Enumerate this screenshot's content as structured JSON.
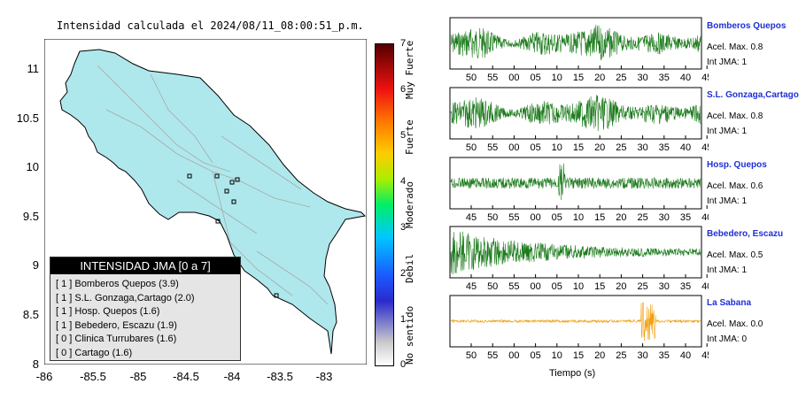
{
  "map": {
    "title": "Intensidad calculada el 2024/08/11_08:00:51_p.m.",
    "y_ticks": [
      "11",
      "10.5",
      "10",
      "9.5",
      "9",
      "8.5",
      "8"
    ],
    "x_ticks": [
      "-86",
      "-85.5",
      "-85",
      "-84.5",
      "-84",
      "-83.5",
      "-83"
    ]
  },
  "colorbar": {
    "numbers": [
      "7",
      "6",
      "5",
      "4",
      "3",
      "2",
      "1",
      "0"
    ],
    "words": [
      "Muy Fuerte",
      "Fuerte",
      "Moderado",
      "Debil",
      "No sentido"
    ]
  },
  "legend": {
    "title": "INTENSIDAD JMA [0 a 7]",
    "rows": [
      "[ 1 ]  Bomberos Quepos (3.9)",
      "[ 1 ]  S.L. Gonzaga,Cartago (2.0)",
      "[ 1 ]  Hosp. Quepos (1.6)",
      "[ 1 ]  Bebedero, Escazu (1.9)",
      "[ 0 ]  Clinica Turrubares (1.6)",
      "[ 0 ]  Cartago (1.6)"
    ]
  },
  "stations": [
    {
      "name": "Bomberos Quepos",
      "acel": "Acel. Max. 0.8",
      "int": "Int JMA: 1",
      "color": "#1a7a1a",
      "amp": 0.8,
      "ticks": [
        "50",
        "55",
        "00",
        "05",
        "10",
        "15",
        "20",
        "25",
        "30",
        "35",
        "40",
        "45"
      ]
    },
    {
      "name": "S.L. Gonzaga,Cartago",
      "acel": "Acel. Max. 0.8",
      "int": "Int JMA: 1",
      "color": "#1a7a1a",
      "amp": 0.8,
      "ticks": [
        "50",
        "55",
        "00",
        "05",
        "10",
        "15",
        "20",
        "25",
        "30",
        "35",
        "40",
        "45"
      ]
    },
    {
      "name": "Hosp. Quepos",
      "acel": "Acel. Max. 0.6",
      "int": "Int JMA: 1",
      "color": "#1a7a1a",
      "amp": 0.6,
      "ticks": [
        "45",
        "50",
        "55",
        "00",
        "05",
        "10",
        "15",
        "20",
        "25",
        "30",
        "35",
        "40"
      ]
    },
    {
      "name": "Bebedero, Escazu",
      "acel": "Acel. Max. 0.5",
      "int": "Int JMA: 1",
      "color": "#1a7a1a",
      "amp": 0.5,
      "ticks": [
        "45",
        "50",
        "55",
        "00",
        "05",
        "10",
        "15",
        "20",
        "25",
        "30",
        "35",
        "40"
      ]
    },
    {
      "name": "La Sabana",
      "acel": "Acel. Max. 0.0",
      "int": "Int JMA: 0",
      "color": "#f0a010",
      "amp": 0.0,
      "ticks": [
        "50",
        "55",
        "00",
        "05",
        "10",
        "15",
        "20",
        "25",
        "30",
        "35",
        "40",
        "45"
      ]
    }
  ],
  "x_axis_label": "Tiempo (s)",
  "chart_data": [
    {
      "type": "heatmap",
      "title": "Intensidad calculada el 2024/08/11_08:00:51_p.m.",
      "xlim": [
        -86,
        -82.7
      ],
      "ylim": [
        8,
        11.3
      ],
      "colorbar": {
        "range": [
          0,
          7
        ],
        "labels": [
          "No sentido",
          "Debil",
          "Moderado",
          "Fuerte",
          "Muy Fuerte"
        ]
      },
      "legend": {
        "title": "INTENSIDAD JMA [0 a 7]",
        "placement": "bottom-left"
      }
    },
    {
      "type": "line",
      "xlabel": "Tiempo (s)",
      "series": [
        {
          "name": "Bomberos Quepos",
          "peak_acceleration": 0.8,
          "jma_intensity": 1
        },
        {
          "name": "S.L. Gonzaga,Cartago",
          "peak_acceleration": 0.8,
          "jma_intensity": 1
        },
        {
          "name": "Hosp. Quepos",
          "peak_acceleration": 0.6,
          "jma_intensity": 1
        },
        {
          "name": "Bebedero, Escazu",
          "peak_acceleration": 0.5,
          "jma_intensity": 1
        },
        {
          "name": "La Sabana",
          "peak_acceleration": 0.0,
          "jma_intensity": 0
        }
      ]
    }
  ]
}
